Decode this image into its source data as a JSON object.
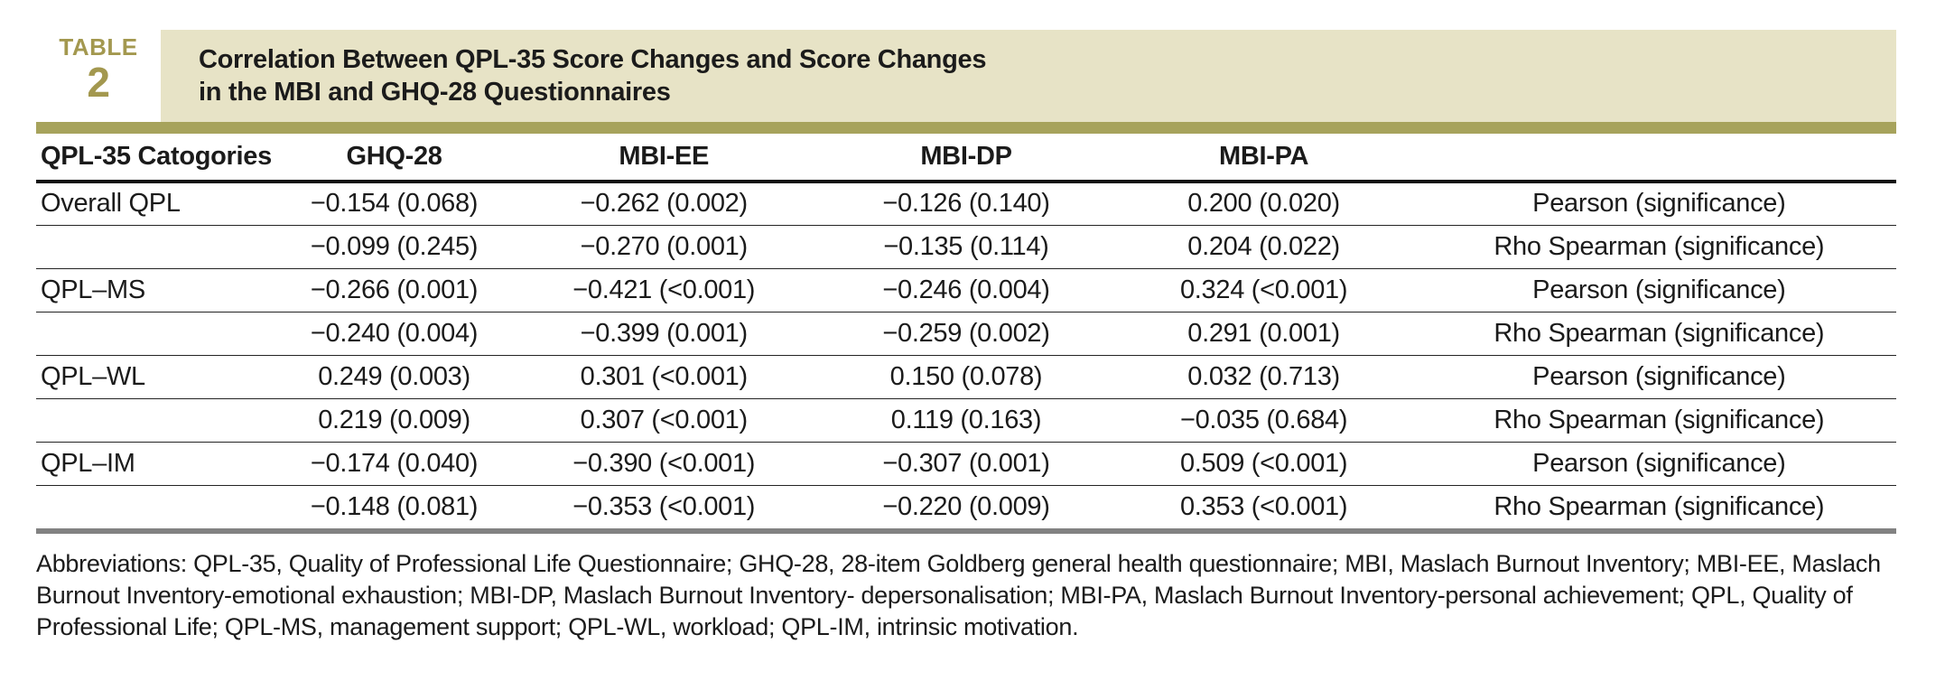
{
  "colors": {
    "accent_gold": "#a3984f",
    "gold_bar": "#a7a35c",
    "banner_bg": "#e7e3c6",
    "gray_bar": "#828282"
  },
  "header": {
    "label_word": "TABLE",
    "label_number": "2",
    "title_line1": "Correlation Between QPL-35 Score Changes and Score Changes",
    "title_line2": "in the MBI and GHQ-28 Questionnaires"
  },
  "table": {
    "columns": [
      "QPL-35 Catogories",
      "GHQ-28",
      "MBI-EE",
      "MBI-DP",
      "MBI-PA",
      ""
    ],
    "rows": [
      {
        "cells": [
          "Overall QPL",
          "−0.154 (0.068)",
          "−0.262 (0.002)",
          "−0.126 (0.140)",
          "0.200 (0.020)",
          "Pearson (significance)"
        ]
      },
      {
        "cells": [
          "",
          "−0.099 (0.245)",
          "−0.270 (0.001)",
          "−0.135 (0.114)",
          "0.204 (0.022)",
          "Rho Spearman (significance)"
        ]
      },
      {
        "cells": [
          "QPL–MS",
          "−0.266 (0.001)",
          "−0.421 (<0.001)",
          "−0.246 (0.004)",
          "0.324 (<0.001)",
          "Pearson (significance)"
        ]
      },
      {
        "cells": [
          "",
          "−0.240 (0.004)",
          "−0.399 (0.001)",
          "−0.259 (0.002)",
          "0.291 (0.001)",
          "Rho Spearman (significance)"
        ]
      },
      {
        "cells": [
          "QPL–WL",
          "0.249 (0.003)",
          "0.301 (<0.001)",
          "0.150 (0.078)",
          "0.032 (0.713)",
          "Pearson (significance)"
        ]
      },
      {
        "cells": [
          "",
          "0.219 (0.009)",
          "0.307 (<0.001)",
          "0.119 (0.163)",
          "−0.035 (0.684)",
          "Rho Spearman (significance)"
        ]
      },
      {
        "cells": [
          "QPL–IM",
          "−0.174 (0.040)",
          "−0.390 (<0.001)",
          "−0.307 (0.001)",
          "0.509 (<0.001)",
          "Pearson (significance)"
        ]
      },
      {
        "cells": [
          "",
          "−0.148 (0.081)",
          "−0.353 (<0.001)",
          "−0.220 (0.009)",
          "0.353 (<0.001)",
          "Rho Spearman (significance)"
        ]
      }
    ]
  },
  "footnote": "Abbreviations: QPL-35, Quality of Professional Life Questionnaire; GHQ-28, 28-item Goldberg general health questionnaire; MBI, Maslach Burnout Inventory; MBI-EE, Maslach Burnout Inventory-emotional exhaustion; MBI-DP, Maslach Burnout Inventory- depersonalisation; MBI-PA, Maslach Burnout Inventory-personal achievement; QPL, Quality of Professional Life; QPL-MS, management support; QPL-WL, workload; QPL-IM, intrinsic motivation."
}
